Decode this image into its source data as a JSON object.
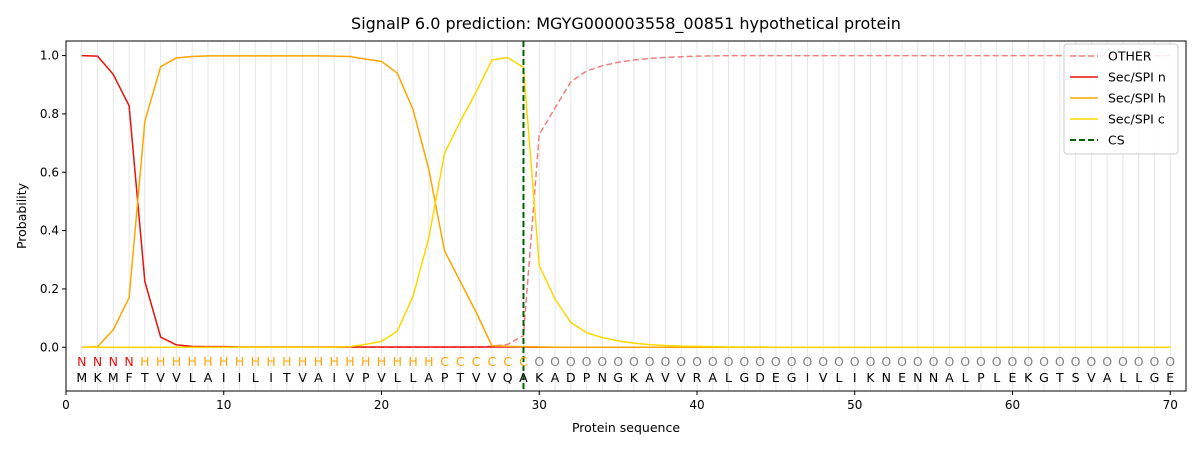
{
  "chart_data": {
    "type": "line",
    "title": "SignalP 6.0 prediction: MGYG000003558_00851 hypothetical protein",
    "xlabel": "Protein sequence",
    "ylabel": "Probability",
    "xlim": [
      0,
      71
    ],
    "ylim": [
      -0.15,
      1.05
    ],
    "xticks": [
      0,
      10,
      20,
      30,
      40,
      50,
      60,
      70
    ],
    "yticks": [
      0.0,
      0.2,
      0.4,
      0.6,
      0.8,
      1.0
    ],
    "grid": "vertical lines at each residue",
    "legend_position": "top-right",
    "sequence": "MKMFTVVLAIILITVAIVPVLLAPTVVQAKADPNGKAVVRALGDEGIVLIKNENNALPLEKGTSVALLGE",
    "region_labels": "NNNNHHHHHHHHHHHHHHHHHHHCCCCCCOOOOOOOOOOOOOOOOOOOOOOOOOOOOOOOOOOOOOOOOO",
    "region_colors": {
      "N": "#e8120d",
      "H": "#ffa500",
      "C": "#ffa500",
      "O": "#808080"
    },
    "cleavage_site": 29,
    "series": [
      {
        "name": "OTHER",
        "color": "#f08080",
        "dash": true,
        "values": [
          0.0,
          0.0,
          0.0,
          0.0,
          0.0,
          0.0,
          0.0,
          0.0,
          0.0,
          0.0,
          0.0,
          0.0,
          0.0,
          0.0,
          0.0,
          0.0,
          0.0,
          0.0,
          0.0,
          0.0,
          0.0,
          0.0,
          0.0,
          0.0,
          0.0,
          0.0,
          0.003,
          0.01,
          0.04,
          0.73,
          0.82,
          0.91,
          0.947,
          0.965,
          0.977,
          0.985,
          0.99,
          0.994,
          0.996,
          0.998,
          0.999,
          1.0,
          1.0,
          1.0,
          1.0,
          1.0,
          1.0,
          1.0,
          1.0,
          1.0,
          1.0,
          1.0,
          1.0,
          1.0,
          1.0,
          1.0,
          1.0,
          1.0,
          1.0,
          1.0,
          1.0,
          1.0,
          1.0,
          1.0,
          1.0,
          1.0,
          1.0,
          1.0,
          1.0,
          1.0
        ]
      },
      {
        "name": "Sec/SPI n",
        "color": "#e8120d",
        "dash": false,
        "values": [
          1.0,
          0.998,
          0.935,
          0.828,
          0.225,
          0.035,
          0.008,
          0.003,
          0.002,
          0.002,
          0.001,
          0.001,
          0.001,
          0.001,
          0.001,
          0.001,
          0.001,
          0.001,
          0.001,
          0.001,
          0.001,
          0.001,
          0.001,
          0.001,
          0.001,
          0.001,
          0.001,
          0.001,
          0.001,
          0.0,
          0.0,
          0.0,
          0.0,
          0.0,
          0.0,
          0.0,
          0.0,
          0.0,
          0.0,
          0.0,
          0.0,
          0.0,
          0.0,
          0.0,
          0.0,
          0.0,
          0.0,
          0.0,
          0.0,
          0.0,
          0.0,
          0.0,
          0.0,
          0.0,
          0.0,
          0.0,
          0.0,
          0.0,
          0.0,
          0.0,
          0.0,
          0.0,
          0.0,
          0.0,
          0.0,
          0.0,
          0.0,
          0.0,
          0.0,
          0.0
        ]
      },
      {
        "name": "Sec/SPI h",
        "color": "#ffa500",
        "dash": false,
        "values": [
          0.0,
          0.002,
          0.06,
          0.17,
          0.775,
          0.962,
          0.992,
          0.997,
          0.999,
          0.999,
          0.999,
          0.999,
          0.999,
          0.999,
          0.999,
          0.999,
          0.998,
          0.997,
          0.988,
          0.98,
          0.94,
          0.815,
          0.61,
          0.33,
          0.225,
          0.12,
          0.005,
          0.003,
          0.002,
          0.001,
          0.0,
          0.0,
          0.0,
          0.0,
          0.0,
          0.0,
          0.0,
          0.0,
          0.0,
          0.0,
          0.0,
          0.0,
          0.0,
          0.0,
          0.0,
          0.0,
          0.0,
          0.0,
          0.0,
          0.0,
          0.0,
          0.0,
          0.0,
          0.0,
          0.0,
          0.0,
          0.0,
          0.0,
          0.0,
          0.0,
          0.0,
          0.0,
          0.0,
          0.0,
          0.0,
          0.0,
          0.0,
          0.0,
          0.0,
          0.0
        ]
      },
      {
        "name": "Sec/SPI c",
        "color": "#ffd700",
        "dash": false,
        "values": [
          0.0,
          0.0,
          0.0,
          0.0,
          0.0,
          0.0,
          0.0,
          0.0,
          0.0,
          0.0,
          0.0,
          0.0,
          0.0,
          0.0,
          0.0,
          0.0,
          0.0,
          0.002,
          0.01,
          0.02,
          0.055,
          0.175,
          0.375,
          0.665,
          0.775,
          0.875,
          0.985,
          0.993,
          0.96,
          0.28,
          0.165,
          0.085,
          0.05,
          0.033,
          0.022,
          0.014,
          0.009,
          0.006,
          0.004,
          0.003,
          0.002,
          0.001,
          0.001,
          0.001,
          0.0,
          0.0,
          0.0,
          0.0,
          0.0,
          0.0,
          0.0,
          0.0,
          0.0,
          0.0,
          0.0,
          0.0,
          0.0,
          0.0,
          0.0,
          0.0,
          0.0,
          0.0,
          0.0,
          0.0,
          0.0,
          0.0,
          0.0,
          0.0,
          0.0,
          0.0
        ]
      }
    ],
    "legend": [
      {
        "label": "OTHER",
        "color": "#f08080",
        "dash": true
      },
      {
        "label": "Sec/SPI n",
        "color": "#e8120d",
        "dash": false
      },
      {
        "label": "Sec/SPI h",
        "color": "#ffa500",
        "dash": false
      },
      {
        "label": "Sec/SPI c",
        "color": "#ffd700",
        "dash": false
      },
      {
        "label": "CS",
        "color": "#006400",
        "dash": true
      }
    ]
  }
}
